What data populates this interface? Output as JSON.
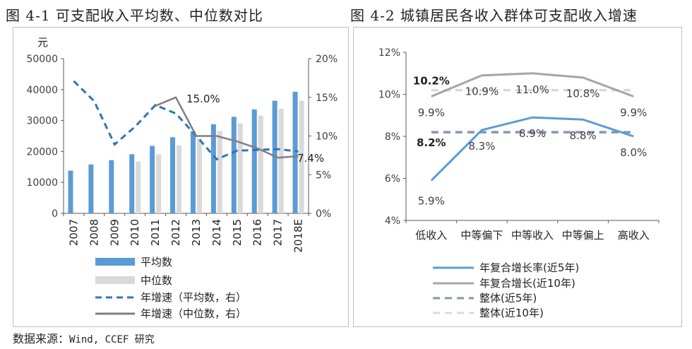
{
  "titles": {
    "left": "图 4-1 可支配收入平均数、中位数对比",
    "right": "图 4-2 城镇居民各收入群体可支配收入增速"
  },
  "source": {
    "prefix": "数据来源：",
    "text": "Wind, CCEF 研究"
  },
  "chart_data": [
    {
      "type": "bar",
      "title": "图 4-1 可支配收入平均数、中位数对比",
      "ylabel": "元",
      "categories": [
        "2007",
        "2008",
        "2009",
        "2010",
        "2011",
        "2012",
        "2013",
        "2014",
        "2015",
        "2016",
        "2017",
        "2018E"
      ],
      "ylim": [
        0,
        50000
      ],
      "y_ticks": [
        "0",
        "10000",
        "20000",
        "30000",
        "40000",
        "50000"
      ],
      "y2lim": [
        0,
        20
      ],
      "y2_ticks": [
        "0%",
        "5%",
        "10%",
        "15%",
        "20%"
      ],
      "series": [
        {
          "name": "平均数",
          "kind": "bar",
          "axis": "left",
          "color": "#5b9bd5",
          "values": [
            13800,
            15800,
            17200,
            19100,
            21800,
            24600,
            26500,
            28800,
            31200,
            33600,
            36400,
            39300
          ]
        },
        {
          "name": "中位数",
          "kind": "bar",
          "axis": "left",
          "color": "#d9d9d9",
          "values": [
            null,
            null,
            null,
            16700,
            19100,
            22000,
            24200,
            26600,
            29100,
            31600,
            33800,
            36400
          ]
        },
        {
          "name": "年增速（平均数，右）",
          "kind": "line",
          "axis": "right",
          "color": "#2e75b6",
          "dash": true,
          "values": [
            17.1,
            14.5,
            8.9,
            11.2,
            14.0,
            12.9,
            10.0,
            7.0,
            8.1,
            8.2,
            8.3,
            8.0
          ]
        },
        {
          "name": "年增速（中位数，右）",
          "kind": "line",
          "axis": "right",
          "color": "#7f7f7f",
          "dash": false,
          "values": [
            null,
            null,
            null,
            null,
            13.9,
            15.0,
            10.0,
            10.0,
            9.3,
            8.4,
            7.2,
            7.4
          ]
        }
      ],
      "annotations": [
        "15.0%",
        "7.4%"
      ],
      "legend_position": "bottom"
    },
    {
      "type": "line",
      "title": "图 4-2 城镇居民各收入群体可支配收入增速",
      "categories": [
        "低收入",
        "中等偏下",
        "中等收入",
        "中等偏上",
        "高收入"
      ],
      "ylim": [
        4,
        12
      ],
      "y_ticks": [
        "4%",
        "6%",
        "8%",
        "10%",
        "12%"
      ],
      "series": [
        {
          "name": "年复合增长率(近5年)",
          "color": "#5b9bd5",
          "dash": false,
          "values": [
            5.9,
            8.3,
            8.9,
            8.8,
            8.0
          ],
          "labels": [
            "5.9%",
            "8.3%",
            "8.9%",
            "8.8%",
            "8.0%"
          ]
        },
        {
          "name": "年复合增长(近10年)",
          "color": "#a5a5a5",
          "dash": false,
          "values": [
            9.9,
            10.9,
            11.0,
            10.8,
            9.9
          ],
          "labels": [
            "9.9%",
            "10.9%",
            "11.0%",
            "10.8%",
            "9.9%"
          ]
        },
        {
          "name": "整体(近5年)",
          "color": "#8497b0",
          "dash": true,
          "values": [
            8.2,
            8.2,
            8.2,
            8.2,
            8.2
          ],
          "label": "8.2%"
        },
        {
          "name": "整体(近10年)",
          "color": "#d9d9d9",
          "dash": true,
          "values": [
            10.2,
            10.2,
            10.2,
            10.2,
            10.2
          ],
          "label": "10.2%"
        }
      ],
      "legend_position": "bottom"
    }
  ]
}
